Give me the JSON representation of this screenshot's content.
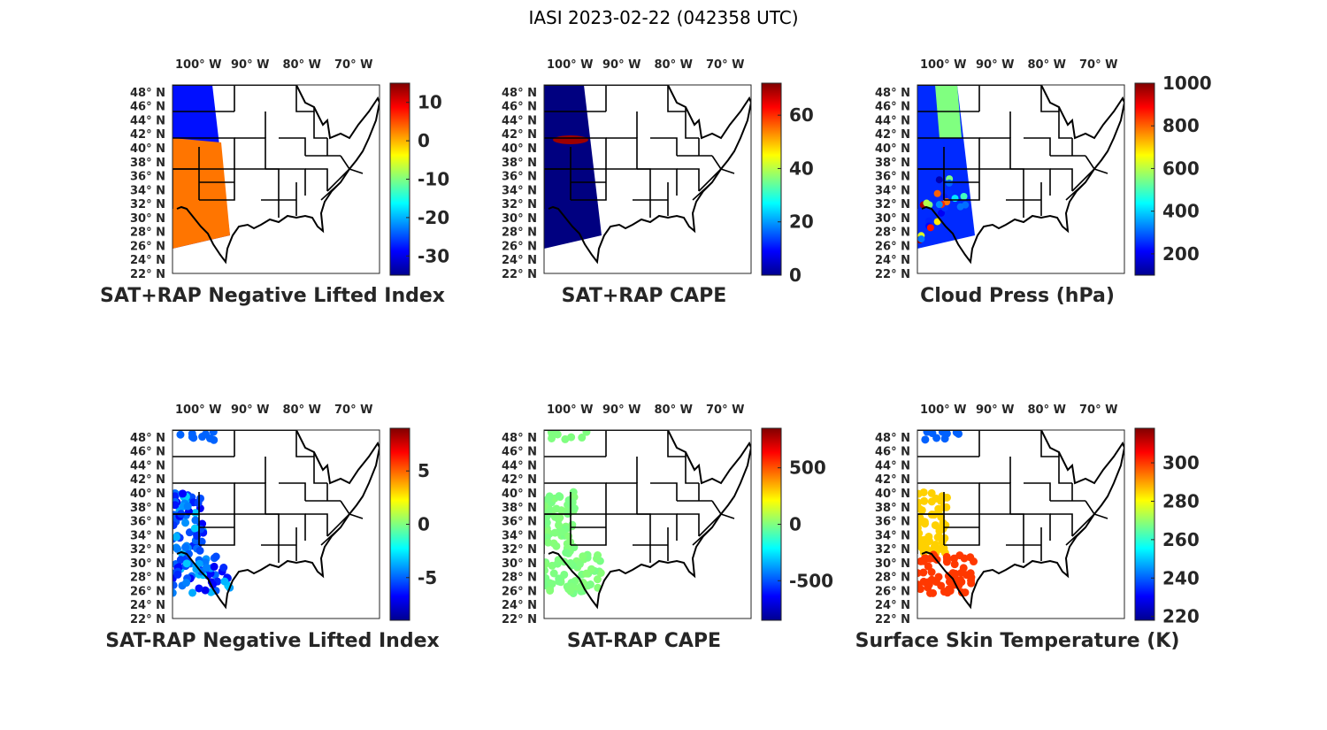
{
  "figure_title": "IASI 2023-02-22 (042358 UTC)",
  "lon_ticks": [
    "100° W",
    "90° W",
    "80° W",
    "70° W"
  ],
  "lat_ticks": [
    "48° N",
    "46° N",
    "44° N",
    "42° N",
    "40° N",
    "38° N",
    "36° N",
    "34° N",
    "32° N",
    "30° N",
    "28° N",
    "26° N",
    "24° N",
    "22° N"
  ],
  "colormap": "jet",
  "colors": {
    "map_lines": "#000000",
    "axes_frame": "#262626",
    "text": "#262626"
  },
  "panels": [
    {
      "title": "SAT+RAP Negative Lifted Index",
      "colorbar_ticks": [
        10,
        0,
        -10,
        -20,
        -30
      ],
      "colorbar_range": [
        -35,
        15
      ],
      "coverage": "swath",
      "dominant_values": "north: -25 to -30 (blue); south: 0 to 5 (yellow/orange)"
    },
    {
      "title": "SAT+RAP CAPE",
      "colorbar_ticks": [
        60,
        40,
        20,
        0
      ],
      "colorbar_range": [
        0,
        72
      ],
      "coverage": "swath",
      "dominant_values": "mostly 0 (dark blue); ~70 near 42° N 98° W (dark red)"
    },
    {
      "title": "Cloud Press (hPa)",
      "colorbar_ticks": [
        1000,
        800,
        600,
        400,
        200
      ],
      "colorbar_range": [
        100,
        1000
      ],
      "coverage": "swath",
      "dominant_values": "mostly 200-400 (blue); 500-600 in northeast swath"
    },
    {
      "title": "SAT-RAP Negative Lifted Index",
      "colorbar_ticks": [
        5,
        0,
        -5
      ],
      "colorbar_range": [
        -9,
        9
      ],
      "coverage": "points",
      "dominant_values": "mostly -3 to -7 (blue/cyan); some 0 to 5"
    },
    {
      "title": "SAT-RAP CAPE",
      "colorbar_ticks": [
        500,
        0,
        -500
      ],
      "colorbar_range": [
        -850,
        850
      ],
      "coverage": "points",
      "dominant_values": "about 0 (light green)"
    },
    {
      "title": "Surface Skin Temperature (K)",
      "colorbar_ticks": [
        300,
        280,
        260,
        240,
        220
      ],
      "colorbar_range": [
        218,
        318
      ],
      "coverage": "points",
      "dominant_values": "north: 240 (blue); central: 285 (yellow); south: 300 (orange)"
    }
  ]
}
